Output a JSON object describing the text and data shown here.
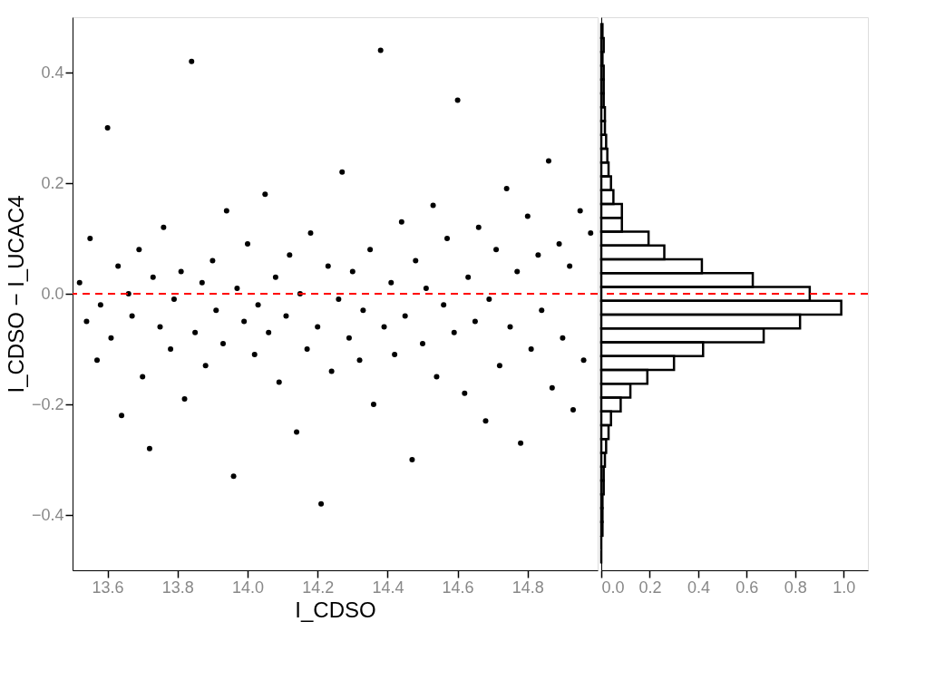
{
  "chart_data": [
    {
      "type": "scatter",
      "xlabel": "I_CDSO",
      "ylabel": "I_CDSO − I_UCAC4",
      "marker": "circle",
      "xlim": [
        13.5,
        15.0
      ],
      "ylim": [
        -0.5,
        0.5
      ],
      "xticks": [
        13.6,
        13.8,
        {
          "value": 14.0,
          "label": "14.0"
        },
        14.2,
        14.4,
        14.6,
        14.8
      ],
      "yticks": [
        {
          "value": -0.4,
          "label": "−0.4"
        },
        {
          "value": -0.2,
          "label": "−0.2"
        },
        {
          "value": 0,
          "label": "0.0"
        },
        0.2,
        0.4
      ],
      "ref_lines": [
        {
          "axis": "y",
          "value": 0,
          "color": "#ff0000",
          "line_style": "dashed"
        }
      ],
      "series": [
        {
          "color": "#000000",
          "x": [
            13.52,
            13.54,
            13.55,
            13.57,
            13.58,
            13.6,
            13.61,
            13.63,
            13.64,
            13.66,
            13.67,
            13.69,
            13.7,
            13.72,
            13.73,
            13.75,
            13.76,
            13.78,
            13.79,
            13.81,
            13.82,
            13.84,
            13.85,
            13.87,
            13.88,
            13.9,
            13.91,
            13.93,
            13.94,
            13.96,
            13.97,
            13.99,
            14.0,
            14.02,
            14.03,
            14.05,
            14.06,
            14.08,
            14.09,
            14.11,
            14.12,
            14.14,
            14.15,
            14.17,
            14.18,
            14.2,
            14.21,
            14.23,
            14.24,
            14.26,
            14.27,
            14.29,
            14.3,
            14.32,
            14.33,
            14.35,
            14.36,
            14.38,
            14.39,
            14.41,
            14.42,
            14.44,
            14.45,
            14.47,
            14.48,
            14.5,
            14.51,
            14.53,
            14.54,
            14.56,
            14.57,
            14.59,
            14.6,
            14.62,
            14.63,
            14.65,
            14.66,
            14.68,
            14.69,
            14.71,
            14.72,
            14.74,
            14.75,
            14.77,
            14.78,
            14.8,
            14.81,
            14.83,
            14.84,
            14.86,
            14.87,
            14.89,
            14.9,
            14.92,
            14.93,
            14.95,
            14.96,
            14.98
          ],
          "values": [
            0.02,
            -0.05,
            0.1,
            -0.12,
            -0.02,
            0.3,
            -0.08,
            0.05,
            -0.22,
            0.0,
            -0.04,
            0.08,
            -0.15,
            -0.28,
            0.03,
            -0.06,
            0.12,
            -0.1,
            -0.01,
            0.04,
            -0.19,
            0.42,
            -0.07,
            0.02,
            -0.13,
            0.06,
            -0.03,
            -0.09,
            0.15,
            -0.33,
            0.01,
            -0.05,
            0.09,
            -0.11,
            -0.02,
            0.18,
            -0.07,
            0.03,
            -0.16,
            -0.04,
            0.07,
            -0.25,
            0.0,
            -0.1,
            0.11,
            -0.06,
            -0.38,
            0.05,
            -0.14,
            -0.01,
            0.22,
            -0.08,
            0.04,
            -0.12,
            -0.03,
            0.08,
            -0.2,
            0.44,
            -0.06,
            0.02,
            -0.11,
            0.13,
            -0.04,
            -0.3,
            0.06,
            -0.09,
            0.01,
            0.16,
            -0.15,
            -0.02,
            0.1,
            -0.07,
            0.35,
            -0.18,
            0.03,
            -0.05,
            0.12,
            -0.23,
            -0.01,
            0.08,
            -0.13,
            0.19,
            -0.06,
            0.04,
            -0.27,
            0.14,
            -0.1,
            0.07,
            -0.03,
            0.24,
            -0.17,
            0.09,
            -0.08,
            0.05,
            -0.21,
            0.15,
            -0.12,
            0.11
          ]
        }
      ]
    },
    {
      "type": "histogram",
      "orientation": "horizontal",
      "xlim": [
        0,
        1.1
      ],
      "xticks": [
        {
          "value": 0,
          "label": "0.0"
        },
        0.2,
        0.4,
        0.6,
        0.8,
        {
          "value": 1,
          "label": "1.0"
        }
      ],
      "ylim": [
        -0.5,
        0.5
      ],
      "tick_labels": "x",
      "ref_lines": [
        {
          "axis": "y",
          "value": 0,
          "color": "#ff0000",
          "line_style": "dashed"
        }
      ],
      "bins": [
        -0.4875,
        -0.4625,
        -0.4375,
        -0.4125,
        -0.3875,
        -0.3625,
        -0.3375,
        -0.3125,
        -0.2875,
        -0.2625,
        -0.2375,
        -0.2125,
        -0.1875,
        -0.1625,
        -0.1375,
        -0.1125,
        -0.0875,
        -0.0625,
        -0.0375,
        -0.0125,
        0.0125,
        0.0375,
        0.0625,
        0.0875,
        0.1125,
        0.1375,
        0.1625,
        0.1875,
        0.2125,
        0.2375,
        0.2625,
        0.2875,
        0.3125,
        0.3375,
        0.3625,
        0.3875,
        0.4125,
        0.4375,
        0.4625,
        0.4875
      ],
      "series": [
        {
          "color": "#000000",
          "values": [
            0.0,
            0.0,
            0.005,
            0.005,
            0.005,
            0.01,
            0.01,
            0.015,
            0.02,
            0.03,
            0.04,
            0.08,
            0.12,
            0.19,
            0.3,
            0.42,
            0.67,
            0.82,
            0.99,
            0.86,
            0.625,
            0.415,
            0.26,
            0.195,
            0.085,
            0.085,
            0.05,
            0.04,
            0.03,
            0.025,
            0.02,
            0.015,
            0.015,
            0.01,
            0.01,
            0.01,
            0.005,
            0.01,
            0.005
          ]
        }
      ]
    }
  ]
}
